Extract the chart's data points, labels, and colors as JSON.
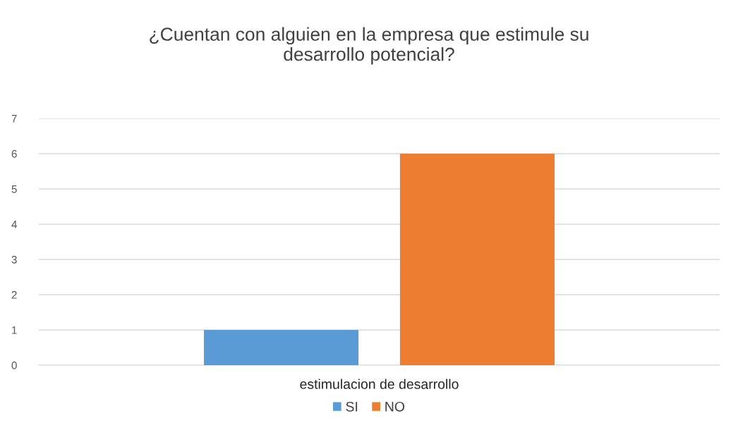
{
  "chart_data": {
    "type": "bar",
    "title": "¿Cuentan con alguien en la empresa que estimule su\ndesarrollo potencial?",
    "categories": [
      "estimulacion de desarrollo"
    ],
    "series": [
      {
        "name": "SI",
        "color": "#5b9bd5",
        "values": [
          1
        ]
      },
      {
        "name": "NO",
        "color": "#ed7d31",
        "values": [
          6
        ]
      }
    ],
    "ylim": [
      0,
      7
    ],
    "yticks": [
      0,
      1,
      2,
      3,
      4,
      5,
      6,
      7
    ],
    "grid": "y",
    "legend": "bottom"
  }
}
